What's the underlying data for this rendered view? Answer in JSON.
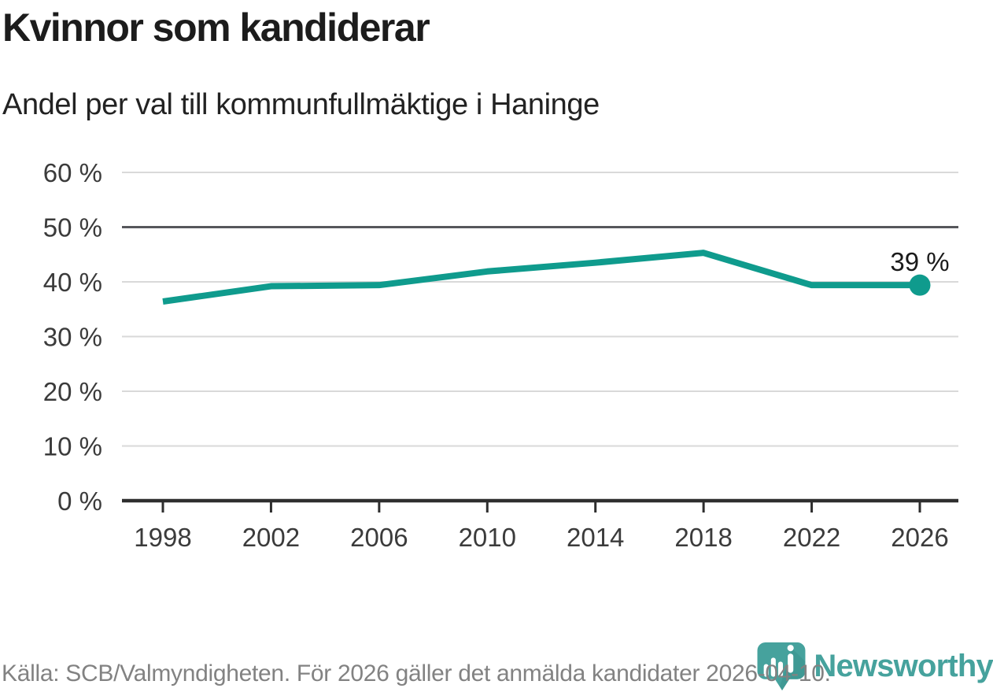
{
  "title": "Kvinnor som kandiderar",
  "subtitle": "Andel per val till kommunfullmäktige i Haninge",
  "chart_data": {
    "type": "line",
    "title": "Kvinnor som kandiderar",
    "subtitle": "Andel per val till kommunfullmäktige i Haninge",
    "categories": [
      "1998",
      "2002",
      "2006",
      "2010",
      "2014",
      "2018",
      "2022",
      "2026"
    ],
    "series": [
      {
        "name": "Kvinnor som kandiderar",
        "values": [
          36.4,
          39.2,
          39.4,
          41.9,
          43.5,
          45.3,
          39.4,
          39.4
        ]
      }
    ],
    "end_point_label": "39 %",
    "ylim": [
      0,
      60
    ],
    "ytick_step": 10,
    "yticklabels": [
      "0 %",
      "10 %",
      "20 %",
      "30 %",
      "40 %",
      "50 %",
      "60 %"
    ],
    "emphasized_gridline_value": 50,
    "grid": true,
    "legend_position": "none",
    "xlabel": "",
    "ylabel": ""
  },
  "colors": {
    "line": "#0f9b8d",
    "point": "#0f9b8d",
    "grid": "#d9d9d9",
    "grid_emphasis": "#56575b",
    "axis": "#2e2e2e",
    "tick_label": "#3b3b3b",
    "annotation_text": "#1a1a1a",
    "footer_text": "#828282",
    "brand_teal": "#46a29d",
    "brand_teal_dark": "#3a918d"
  },
  "footer": {
    "source_text": "Källa: SCB/Valmyndigheten. För 2026 gäller det anmälda kandidater 2026-04-10."
  },
  "branding": {
    "wordmark": "Newsworthy",
    "icon": "newsworthy-pin-barchart-icon"
  }
}
